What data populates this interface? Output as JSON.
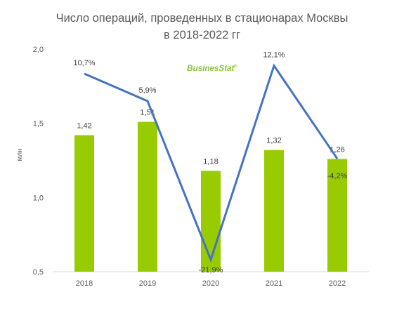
{
  "title_line1": "Число операций, проведенных в стационарах Москвы",
  "title_line2": "в 2018-2022 гг",
  "logo": {
    "text_main": "Busines",
    "text_accent": "Stat",
    "mark": "®"
  },
  "chart_data": {
    "type": "bar",
    "ylabel": "млн",
    "ylim": [
      0.5,
      2.0
    ],
    "yticks": [
      "0,5",
      "1,0",
      "1,5",
      "2,0"
    ],
    "ytick_values": [
      0.5,
      1.0,
      1.5,
      2.0
    ],
    "categories": [
      "2018",
      "2019",
      "2020",
      "2021",
      "2022"
    ],
    "values": [
      1.42,
      1.51,
      1.18,
      1.32,
      1.26
    ],
    "value_labels": [
      "1,42",
      "1,51",
      "1,18",
      "1,32",
      "1,26"
    ],
    "bar_color": "#99cc00",
    "growth": {
      "type": "line",
      "color": "#4472c4",
      "values": [
        10.7,
        5.9,
        -21.9,
        12.1,
        -4.2
      ],
      "labels": [
        "10,7%",
        "5,9%",
        "-21,9%",
        "12,1%",
        "-4,2%"
      ],
      "range": [
        -24,
        15
      ]
    }
  }
}
